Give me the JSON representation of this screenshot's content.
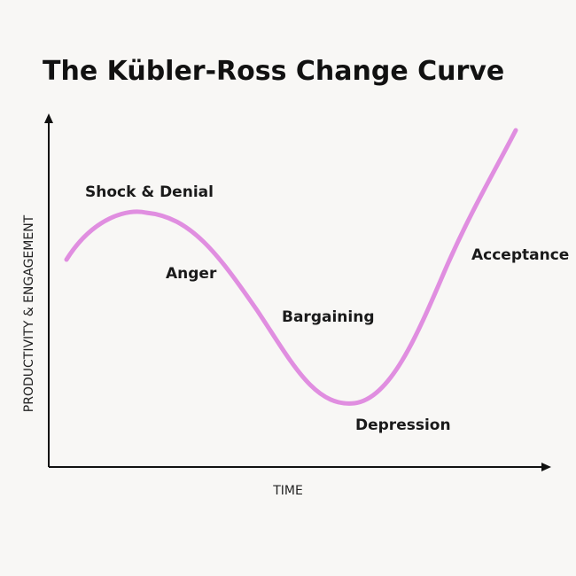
{
  "title": "The Kübler-Ross Change Curve",
  "y_axis_label": "PRODUCTIVITY & ENGAGEMENT",
  "x_axis_label": "TIME",
  "stages": [
    "Shock & Denial",
    "Anger",
    "Bargaining",
    "Depression",
    "Acceptance"
  ]
}
